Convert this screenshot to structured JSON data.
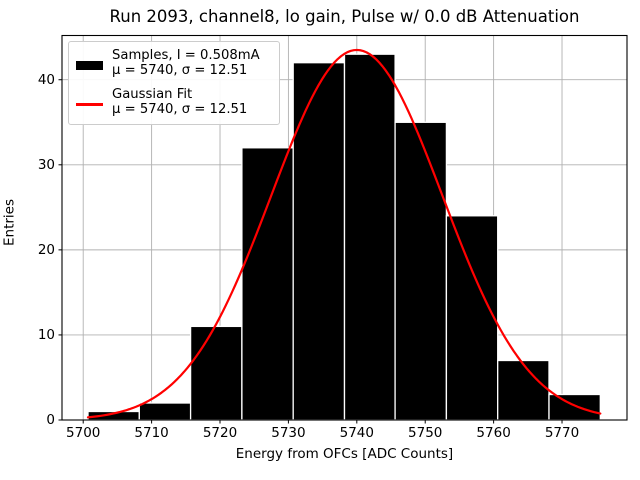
{
  "chart_data": {
    "type": "bar",
    "subtype": "histogram-with-gaussian-fit",
    "title": "Run 2093, channel8, lo gain, Pulse w/ 0.0 dB Attenuation",
    "xlabel": "Energy from OFCs [ADC Counts]",
    "ylabel": "Entries",
    "xlim": [
      5696.9,
      5779.5
    ],
    "ylim": [
      0,
      45.2
    ],
    "xticks": [
      5700,
      5710,
      5720,
      5730,
      5740,
      5750,
      5760,
      5770
    ],
    "yticks": [
      0,
      10,
      20,
      30,
      40
    ],
    "grid": true,
    "grid_color": "#b0b0b0",
    "histogram": {
      "label": "Samples, I = 0.508mA",
      "color": "#000000",
      "bin_edges": [
        5700.7,
        5708.2,
        5715.7,
        5723.2,
        5730.7,
        5738.2,
        5745.6,
        5753.1,
        5760.6,
        5768.1,
        5775.6
      ],
      "counts": [
        1,
        2,
        11,
        32,
        42,
        43,
        35,
        24,
        7,
        3
      ],
      "total_entries": 200,
      "mu": 5740,
      "sigma": 12.51
    },
    "gaussian_fit": {
      "label": "Gaussian Fit",
      "color": "#ff0000",
      "mu": 5740,
      "sigma": 12.51,
      "peak": 43.5
    },
    "legend": {
      "position": "upper left",
      "entries": [
        {
          "swatch": "bar",
          "color": "#000000",
          "line1": "Samples, I = 0.508mA",
          "line2": "μ = 5740, σ = 12.51"
        },
        {
          "swatch": "line",
          "color": "#ff0000",
          "line1": "Gaussian Fit",
          "line2": "μ = 5740, σ = 12.51"
        }
      ]
    }
  }
}
